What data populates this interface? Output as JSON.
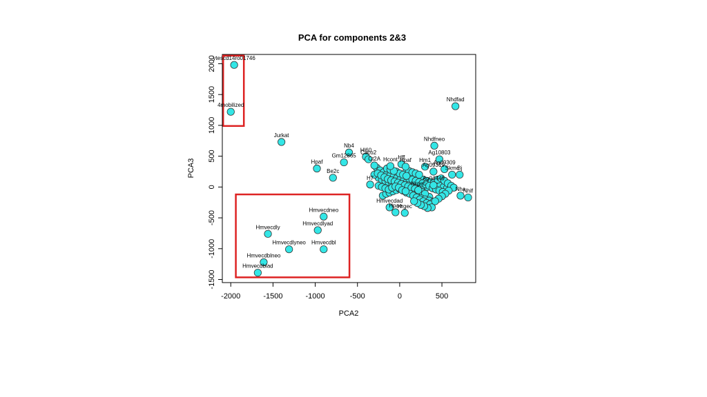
{
  "chart_data": {
    "type": "scatter",
    "title": "PCA for components 2&3",
    "xlabel": "PCA2",
    "ylabel": "PCA3",
    "xlim": [
      -2100,
      900
    ],
    "ylim": [
      -1550,
      2150
    ],
    "xticks": [
      -2000,
      -1500,
      -1000,
      -500,
      0,
      500
    ],
    "yticks": [
      -1500,
      -1000,
      -500,
      0,
      500,
      1000,
      1500,
      2000
    ],
    "grid": false,
    "colors": {
      "point_fill": "#33e6e6",
      "point_stroke": "#333333",
      "highlight_box": "#dd2222"
    },
    "highlight_boxes": [
      {
        "x": [
          -2090,
          -1845
        ],
        "y": [
          990,
          2130
        ]
      },
      {
        "x": [
          -1940,
          -595
        ],
        "y": [
          -1465,
          -120
        ]
      }
    ],
    "labeled_points": [
      {
        "label": "ytescd14ro01746",
        "x": -1960,
        "y": 1980
      },
      {
        "label": "4mobilized",
        "x": -2000,
        "y": 1220
      },
      {
        "label": "Jurkat",
        "x": -1400,
        "y": 730
      },
      {
        "label": "Nb4",
        "x": -600,
        "y": 560
      },
      {
        "label": "Hl60",
        "x": -400,
        "y": 490
      },
      {
        "label": "Caco2",
        "x": -370,
        "y": 450
      },
      {
        "label": "Gm12865",
        "x": -660,
        "y": 400
      },
      {
        "label": "Hpaf",
        "x": -980,
        "y": 300
      },
      {
        "label": "Be2c",
        "x": -790,
        "y": 150
      },
      {
        "label": "Ct2A",
        "x": -300,
        "y": 350
      },
      {
        "label": "Hcont",
        "x": -110,
        "y": 340
      },
      {
        "label": "Hff",
        "x": 20,
        "y": 370
      },
      {
        "label": "Hpaf",
        "x": 70,
        "y": 330
      },
      {
        "label": "H7",
        "x": -350,
        "y": 40
      },
      {
        "label": "Nhdfad",
        "x": 660,
        "y": 1310
      },
      {
        "label": "Nhdfneo",
        "x": 410,
        "y": 670
      },
      {
        "label": "Ag10803",
        "x": 470,
        "y": 450
      },
      {
        "label": "Hm1",
        "x": 300,
        "y": 330
      },
      {
        "label": "Ag09309",
        "x": 530,
        "y": 290
      },
      {
        "label": "Ag09319",
        "x": 400,
        "y": 250
      },
      {
        "label": "Skmc",
        "x": 620,
        "y": 200
      },
      {
        "label": "Bj",
        "x": 710,
        "y": 200
      },
      {
        "label": "Ag04449",
        "x": 400,
        "y": 30
      },
      {
        "label": "Hrgec",
        "x": 220,
        "y": -50
      },
      {
        "label": "Nha",
        "x": 720,
        "y": -140
      },
      {
        "label": "Nhlf",
        "x": 810,
        "y": -170
      },
      {
        "label": "Hmvecdad",
        "x": -120,
        "y": -330
      },
      {
        "label": "Hpae",
        "x": -50,
        "y": -410
      },
      {
        "label": "Hrgec",
        "x": 60,
        "y": -420
      },
      {
        "label": "Hmvecdneo",
        "x": -900,
        "y": -480
      },
      {
        "label": "Hmvecdlyad",
        "x": -970,
        "y": -700
      },
      {
        "label": "Hmvecdly",
        "x": -1560,
        "y": -760
      },
      {
        "label": "Hmvecdlyneo",
        "x": -1310,
        "y": -1010
      },
      {
        "label": "Hmvecdbl",
        "x": -900,
        "y": -1010
      },
      {
        "label": "Hmvecdblneo",
        "x": -1610,
        "y": -1220
      },
      {
        "label": "Hmvecdblad",
        "x": -1680,
        "y": -1390
      }
    ],
    "unlabeled_points": [
      [
        -270,
        310
      ],
      [
        -230,
        270
      ],
      [
        -190,
        240
      ],
      [
        -150,
        210
      ],
      [
        -110,
        190
      ],
      [
        -70,
        170
      ],
      [
        -30,
        150
      ],
      [
        10,
        130
      ],
      [
        50,
        110
      ],
      [
        90,
        95
      ],
      [
        130,
        80
      ],
      [
        170,
        60
      ],
      [
        210,
        50
      ],
      [
        250,
        40
      ],
      [
        290,
        20
      ],
      [
        330,
        0
      ],
      [
        -250,
        150
      ],
      [
        -210,
        120
      ],
      [
        -170,
        100
      ],
      [
        -130,
        80
      ],
      [
        -90,
        60
      ],
      [
        -50,
        40
      ],
      [
        -10,
        20
      ],
      [
        30,
        0
      ],
      [
        70,
        -20
      ],
      [
        110,
        -40
      ],
      [
        150,
        -60
      ],
      [
        190,
        -80
      ],
      [
        230,
        -100
      ],
      [
        270,
        -120
      ],
      [
        310,
        -140
      ],
      [
        350,
        -160
      ],
      [
        -300,
        200
      ],
      [
        -260,
        220
      ],
      [
        -220,
        190
      ],
      [
        -180,
        160
      ],
      [
        -140,
        130
      ],
      [
        -100,
        110
      ],
      [
        -60,
        90
      ],
      [
        -20,
        70
      ],
      [
        20,
        50
      ],
      [
        60,
        30
      ],
      [
        100,
        10
      ],
      [
        140,
        -10
      ],
      [
        180,
        -30
      ],
      [
        220,
        -60
      ],
      [
        260,
        -80
      ],
      [
        300,
        -110
      ],
      [
        120,
        200
      ],
      [
        160,
        180
      ],
      [
        200,
        160
      ],
      [
        240,
        140
      ],
      [
        280,
        120
      ],
      [
        320,
        100
      ],
      [
        360,
        80
      ],
      [
        400,
        60
      ],
      [
        440,
        40
      ],
      [
        480,
        20
      ],
      [
        520,
        0
      ],
      [
        560,
        -20
      ],
      [
        150,
        -120
      ],
      [
        200,
        -150
      ],
      [
        250,
        -180
      ],
      [
        300,
        -200
      ],
      [
        350,
        -220
      ],
      [
        400,
        -240
      ],
      [
        -200,
        -140
      ],
      [
        -160,
        -110
      ],
      [
        -120,
        -90
      ],
      [
        -80,
        -70
      ],
      [
        -40,
        -50
      ],
      [
        0,
        -30
      ],
      [
        40,
        -60
      ],
      [
        80,
        -90
      ],
      [
        120,
        -110
      ],
      [
        160,
        -140
      ],
      [
        200,
        -170
      ],
      [
        240,
        -200
      ],
      [
        280,
        -230
      ],
      [
        320,
        -260
      ],
      [
        360,
        -280
      ],
      [
        380,
        -330
      ],
      [
        330,
        -340
      ],
      [
        290,
        -310
      ],
      [
        250,
        -290
      ],
      [
        210,
        -260
      ],
      [
        170,
        -230
      ],
      [
        -250,
        20
      ],
      [
        -210,
        0
      ],
      [
        -170,
        -20
      ],
      [
        -130,
        -40
      ],
      [
        -90,
        -10
      ],
      [
        -50,
        10
      ],
      [
        -10,
        -10
      ],
      [
        30,
        -50
      ],
      [
        70,
        -70
      ],
      [
        110,
        140
      ],
      [
        150,
        120
      ],
      [
        190,
        100
      ],
      [
        230,
        80
      ],
      [
        270,
        60
      ],
      [
        310,
        40
      ],
      [
        350,
        20
      ],
      [
        390,
        -20
      ],
      [
        430,
        -40
      ],
      [
        470,
        -60
      ],
      [
        510,
        -80
      ],
      [
        450,
        120
      ],
      [
        490,
        140
      ],
      [
        530,
        100
      ],
      [
        570,
        60
      ],
      [
        610,
        20
      ],
      [
        640,
        -10
      ],
      [
        580,
        -60
      ],
      [
        540,
        -110
      ],
      [
        500,
        -150
      ],
      [
        460,
        -190
      ],
      [
        420,
        -230
      ],
      [
        70,
        230
      ],
      [
        110,
        260
      ],
      [
        150,
        240
      ],
      [
        190,
        220
      ],
      [
        230,
        200
      ],
      [
        -40,
        250
      ],
      [
        0,
        220
      ],
      [
        40,
        200
      ],
      [
        80,
        180
      ],
      [
        -150,
        300
      ],
      [
        -110,
        280
      ],
      [
        -70,
        260
      ]
    ]
  }
}
